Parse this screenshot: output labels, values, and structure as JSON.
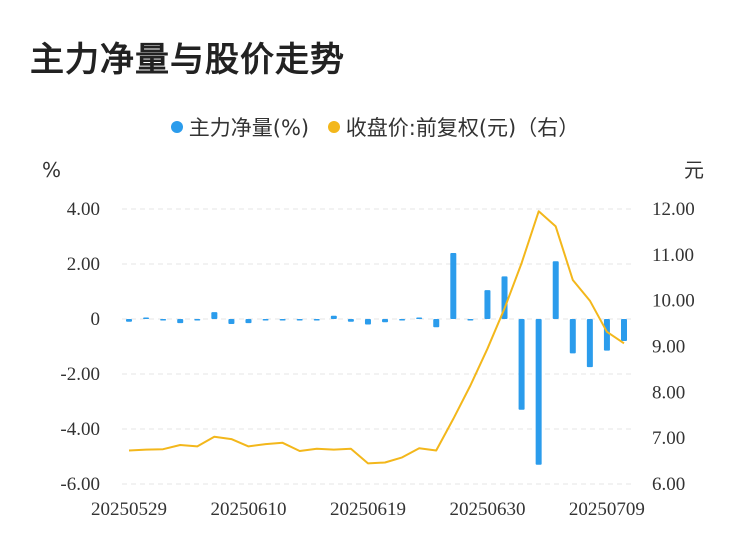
{
  "title": "主力净量与股价走势",
  "legend": {
    "series1": "主力净量(%)",
    "series2": "收盘价:前复权(元)（右）"
  },
  "colors": {
    "bar": "#2b9cec",
    "line": "#f3b71b",
    "grid": "#e6e6e6"
  },
  "chart_data": {
    "type": "bar+line",
    "left_axis": {
      "unit": "%",
      "ylim": [
        -6,
        4
      ],
      "ticks": [
        4,
        2,
        0,
        -2,
        -4,
        -6
      ],
      "tick_labels": [
        "4.00",
        "2.00",
        "0",
        "-2.00",
        "-4.00",
        "-6.00"
      ]
    },
    "right_axis": {
      "unit": "元",
      "ylim": [
        6,
        12
      ],
      "ticks": [
        12,
        11,
        10,
        9,
        8,
        7,
        6
      ],
      "tick_labels": [
        "12.00",
        "11.00",
        "10.00",
        "9.00",
        "8.00",
        "7.00",
        "6.00"
      ]
    },
    "x_tick_labels": [
      "20250529",
      "20250610",
      "20250619",
      "20250630",
      "20250709"
    ],
    "x_tick_indices": [
      0,
      7,
      14,
      21,
      28
    ],
    "n_points": 30,
    "series": [
      {
        "name": "主力净量(%)",
        "type": "bar",
        "values": [
          -0.1,
          0.0,
          -0.03,
          -0.15,
          -0.05,
          0.25,
          -0.18,
          -0.15,
          -0.05,
          -0.02,
          -0.02,
          -0.04,
          0.12,
          -0.1,
          -0.2,
          -0.12,
          -0.05,
          0.0,
          -0.3,
          2.4,
          -0.05,
          1.05,
          1.55,
          -3.3,
          -5.3,
          2.1,
          -1.25,
          -1.75,
          -1.15,
          -0.8
        ]
      },
      {
        "name": "收盘价:前复权(元)（右）",
        "type": "line",
        "axis": "right",
        "values": [
          6.73,
          6.75,
          6.76,
          6.85,
          6.82,
          7.03,
          6.98,
          6.82,
          6.87,
          6.9,
          6.72,
          6.77,
          6.75,
          6.77,
          6.45,
          6.47,
          6.58,
          6.78,
          6.73,
          7.42,
          8.15,
          8.95,
          9.83,
          10.82,
          11.95,
          11.62,
          10.45,
          10.0,
          9.32,
          9.07
        ]
      }
    ]
  }
}
